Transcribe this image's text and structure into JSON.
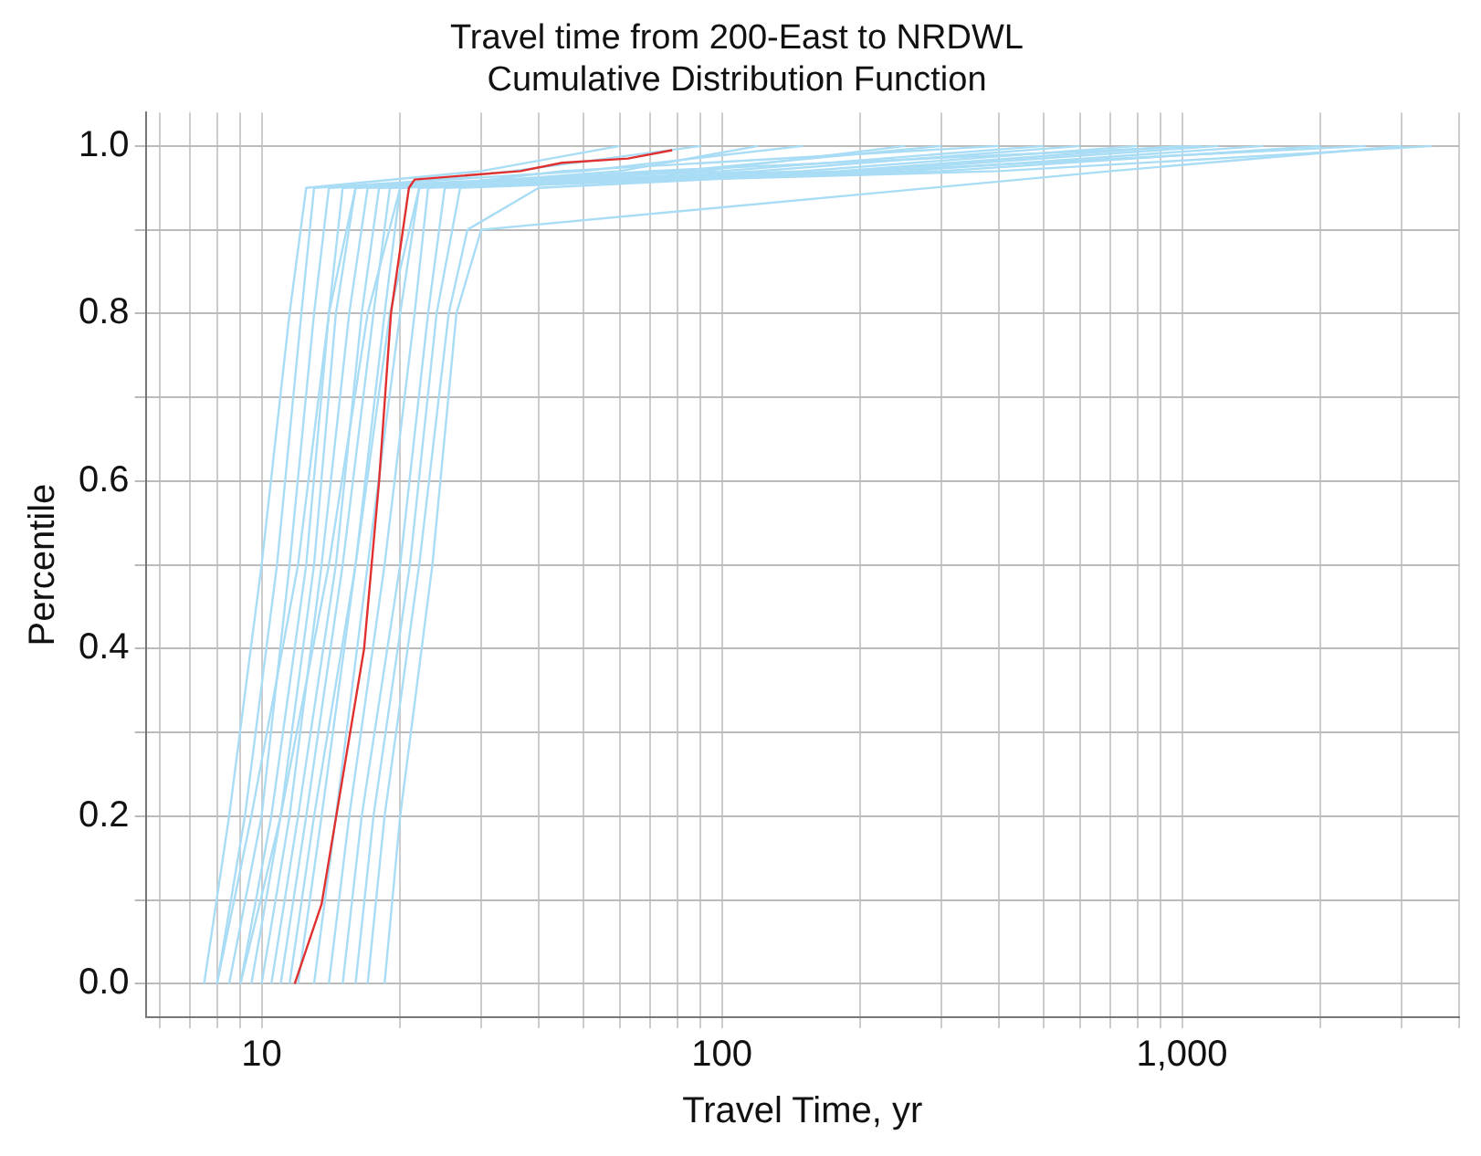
{
  "chart_data": {
    "type": "line",
    "title": "Travel time from 200-East to NRDWL",
    "subtitle": "Cumulative Distribution Function",
    "xlabel": "Travel Time, yr",
    "ylabel": "Percentile",
    "log": "x",
    "grid": true,
    "legend": false,
    "marker": "none",
    "line_style": "solid",
    "xlim": [
      5.6,
      4000
    ],
    "ylim": [
      -0.04,
      1.04
    ],
    "xticks": [
      {
        "value": 6,
        "label": null
      },
      {
        "value": 7,
        "label": null
      },
      {
        "value": 8,
        "label": null
      },
      {
        "value": 9,
        "label": null
      },
      10,
      {
        "value": 20,
        "label": null
      },
      {
        "value": 30,
        "label": null
      },
      {
        "value": 40,
        "label": null
      },
      {
        "value": 50,
        "label": null
      },
      {
        "value": 60,
        "label": null
      },
      {
        "value": 70,
        "label": null
      },
      {
        "value": 80,
        "label": null
      },
      {
        "value": 90,
        "label": null
      },
      100,
      {
        "value": 200,
        "label": null
      },
      {
        "value": 300,
        "label": null
      },
      {
        "value": 400,
        "label": null
      },
      {
        "value": 500,
        "label": null
      },
      {
        "value": 600,
        "label": null
      },
      {
        "value": 700,
        "label": null
      },
      {
        "value": 800,
        "label": null
      },
      {
        "value": 900,
        "label": null
      },
      {
        "value": 1000,
        "label": "1,000"
      },
      {
        "value": 2000,
        "label": null
      },
      {
        "value": 3000,
        "label": null
      },
      {
        "value": 4000,
        "label": null
      }
    ],
    "yticks": [
      {
        "value": 0,
        "label": "0.0"
      },
      {
        "value": 0.1,
        "label": null
      },
      {
        "value": 0.2,
        "label": "0.2"
      },
      {
        "value": 0.3,
        "label": null
      },
      {
        "value": 0.4,
        "label": "0.4"
      },
      {
        "value": 0.5,
        "label": null
      },
      {
        "value": 0.6,
        "label": "0.6"
      },
      {
        "value": 0.7,
        "label": null
      },
      {
        "value": 0.8,
        "label": "0.8"
      },
      {
        "value": 0.9,
        "label": null
      },
      {
        "value": 1,
        "label": "1.0"
      }
    ],
    "series": [
      {
        "color": "#e0302f",
        "x": [
          11.8,
          13.5,
          16.7,
          18,
          19.1,
          20.9,
          21.5,
          36.5,
          45,
          62.5,
          78
        ],
        "values": [
          0,
          0.095,
          0.4,
          0.6,
          0.8,
          0.95,
          0.96,
          0.97,
          0.98,
          0.985,
          0.995
        ]
      },
      {
        "color": "#a9dcf5",
        "x": [
          7.5,
          8.5,
          10,
          11.5,
          12.5,
          30,
          60
        ],
        "values": [
          0,
          0.2,
          0.5,
          0.8,
          0.95,
          0.97,
          1
        ]
      },
      {
        "color": "#a9dcf5",
        "x": [
          8,
          9.2,
          10.8,
          12.2,
          13,
          50,
          150
        ],
        "values": [
          0,
          0.2,
          0.5,
          0.8,
          0.95,
          0.97,
          1
        ]
      },
      {
        "color": "#a9dcf5",
        "x": [
          8.5,
          10,
          11.5,
          13,
          14,
          80,
          300
        ],
        "values": [
          0,
          0.2,
          0.5,
          0.8,
          0.95,
          0.97,
          1
        ]
      },
      {
        "color": "#a9dcf5",
        "x": [
          9,
          10.5,
          12.5,
          14,
          15,
          100,
          500
        ],
        "values": [
          0,
          0.2,
          0.5,
          0.8,
          0.95,
          0.97,
          1
        ]
      },
      {
        "color": "#a9dcf5",
        "x": [
          9.5,
          11,
          13,
          14.5,
          16,
          150,
          800
        ],
        "values": [
          0,
          0.2,
          0.5,
          0.8,
          0.95,
          0.97,
          1
        ]
      },
      {
        "color": "#a9dcf5",
        "x": [
          10,
          11.5,
          13.5,
          15.5,
          17,
          200,
          1200
        ],
        "values": [
          0,
          0.2,
          0.5,
          0.8,
          0.95,
          0.97,
          1
        ]
      },
      {
        "color": "#a9dcf5",
        "x": [
          10.5,
          12,
          14.5,
          16.5,
          18,
          300,
          2000
        ],
        "values": [
          0,
          0.2,
          0.5,
          0.8,
          0.95,
          0.97,
          1
        ]
      },
      {
        "color": "#a9dcf5",
        "x": [
          11,
          12.5,
          15,
          17.5,
          19,
          400,
          3500
        ],
        "values": [
          0,
          0.2,
          0.5,
          0.8,
          0.95,
          0.97,
          1
        ]
      },
      {
        "color": "#a9dcf5",
        "x": [
          12,
          13.5,
          16,
          18.5,
          20,
          60,
          120
        ],
        "values": [
          0,
          0.2,
          0.5,
          0.8,
          0.95,
          0.97,
          1
        ]
      },
      {
        "color": "#a9dcf5",
        "x": [
          13,
          14.5,
          17,
          20,
          22,
          90,
          250
        ],
        "values": [
          0,
          0.2,
          0.5,
          0.8,
          0.95,
          0.97,
          1
        ]
      },
      {
        "color": "#a9dcf5",
        "x": [
          14,
          15.5,
          18.5,
          21.5,
          23,
          120,
          600
        ],
        "values": [
          0,
          0.2,
          0.5,
          0.8,
          0.95,
          0.97,
          1
        ]
      },
      {
        "color": "#a9dcf5",
        "x": [
          15,
          16.5,
          20,
          23,
          25,
          180,
          1000
        ],
        "values": [
          0,
          0.2,
          0.5,
          0.8,
          0.95,
          0.97,
          1
        ]
      },
      {
        "color": "#a9dcf5",
        "x": [
          16,
          17.5,
          21,
          24,
          27,
          250,
          1500
        ],
        "values": [
          0,
          0.2,
          0.5,
          0.8,
          0.95,
          0.97,
          1
        ]
      },
      {
        "color": "#a9dcf5",
        "x": [
          17,
          18.5,
          22,
          25.5,
          28,
          40,
          2500
        ],
        "values": [
          0,
          0.2,
          0.5,
          0.8,
          0.9,
          0.95,
          1
        ]
      },
      {
        "color": "#a9dcf5",
        "x": [
          18.5,
          20,
          23.5,
          26.5,
          30,
          700,
          3000
        ],
        "values": [
          0,
          0.2,
          0.5,
          0.8,
          0.9,
          0.97,
          1
        ]
      },
      {
        "color": "#a9dcf5",
        "x": [
          8,
          9.5,
          12,
          14,
          16,
          35,
          90
        ],
        "values": [
          0,
          0.2,
          0.5,
          0.8,
          0.95,
          0.97,
          1
        ]
      },
      {
        "color": "#a9dcf5",
        "x": [
          11.5,
          13,
          16,
          19,
          22,
          45,
          400
        ],
        "values": [
          0,
          0.2,
          0.5,
          0.8,
          0.95,
          0.97,
          1
        ]
      },
      {
        "color": "#a9dcf5",
        "x": [
          9,
          11,
          14,
          17,
          20,
          70,
          1100
        ],
        "values": [
          0,
          0.2,
          0.5,
          0.8,
          0.95,
          0.97,
          1
        ]
      }
    ]
  }
}
